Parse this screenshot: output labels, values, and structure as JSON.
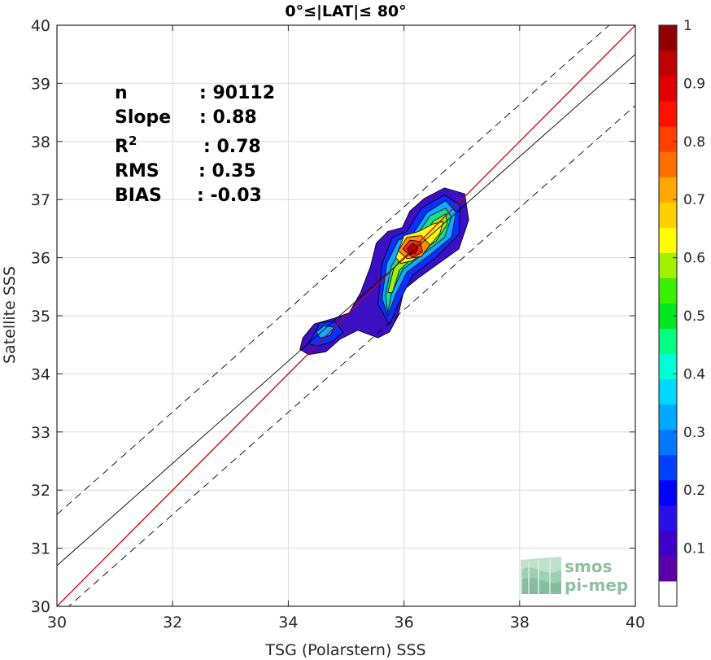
{
  "chart_data": {
    "type": "heatmap",
    "title": "0°≤|LAT|≤ 80°",
    "xlabel": "TSG (Polarstern) SSS",
    "ylabel": "Satellite SSS",
    "xlim": [
      30,
      40
    ],
    "ylim": [
      30,
      40
    ],
    "xticks": [
      "30",
      "32",
      "34",
      "36",
      "38",
      "40"
    ],
    "yticks": [
      "30",
      "31",
      "32",
      "33",
      "34",
      "35",
      "36",
      "37",
      "38",
      "39",
      "40"
    ],
    "grid": true,
    "stats": [
      {
        "label": "n",
        "value": ": 90112"
      },
      {
        "label": "Slope",
        "value": ": 0.88"
      },
      {
        "label": "R",
        "sup": "2",
        "value": ": 0.78"
      },
      {
        "label": "RMS",
        "value": ": 0.35"
      },
      {
        "label": "BIAS",
        "value": ": -0.03"
      }
    ],
    "lines": {
      "identity": {
        "color": "#cc0000",
        "from": [
          30,
          30
        ],
        "to": [
          40,
          40
        ]
      },
      "fit": {
        "color": "#000000",
        "from": [
          30,
          30.7
        ],
        "to": [
          40,
          39.5
        ]
      },
      "fit_upper": {
        "color": "#000000",
        "dashed": true,
        "from": [
          30,
          31.58
        ],
        "to": [
          40,
          40.4
        ]
      },
      "fit_lower": {
        "color": "#000000",
        "dashed": true,
        "from": [
          30,
          29.82
        ],
        "to": [
          40,
          38.62
        ]
      }
    },
    "density_levels": [
      {
        "level": 0.05,
        "color": "#3b0fc4",
        "poly": [
          [
            34.2,
            34.42
          ],
          [
            34.25,
            34.62
          ],
          [
            34.45,
            34.86
          ],
          [
            34.8,
            34.96
          ],
          [
            35.05,
            35.05
          ],
          [
            35.25,
            35.4
          ],
          [
            35.42,
            35.85
          ],
          [
            35.52,
            36.25
          ],
          [
            35.72,
            36.45
          ],
          [
            35.97,
            36.52
          ],
          [
            36.1,
            36.8
          ],
          [
            36.35,
            37.02
          ],
          [
            36.7,
            37.2
          ],
          [
            37.05,
            37.1
          ],
          [
            37.12,
            36.65
          ],
          [
            36.95,
            36.15
          ],
          [
            36.6,
            35.9
          ],
          [
            36.25,
            35.65
          ],
          [
            36.0,
            35.45
          ],
          [
            35.9,
            35.0
          ],
          [
            35.75,
            34.72
          ],
          [
            35.55,
            34.62
          ],
          [
            35.2,
            34.75
          ],
          [
            34.9,
            34.6
          ],
          [
            34.65,
            34.38
          ],
          [
            34.35,
            34.33
          ]
        ]
      },
      {
        "level": 0.15,
        "color": "#0b2fff",
        "poly": [
          [
            34.35,
            34.52
          ],
          [
            34.55,
            34.88
          ],
          [
            34.8,
            34.9
          ],
          [
            34.95,
            34.72
          ],
          [
            34.75,
            34.55
          ],
          [
            34.5,
            34.48
          ]
        ]
      },
      {
        "level": 0.15,
        "color": "#0b2fff",
        "poly": [
          [
            35.55,
            35.2
          ],
          [
            35.62,
            35.9
          ],
          [
            35.8,
            36.35
          ],
          [
            36.05,
            36.45
          ],
          [
            36.3,
            36.85
          ],
          [
            36.7,
            37.08
          ],
          [
            36.97,
            36.9
          ],
          [
            36.95,
            36.4
          ],
          [
            36.55,
            36.0
          ],
          [
            36.15,
            35.7
          ],
          [
            35.95,
            35.3
          ],
          [
            35.75,
            34.85
          ]
        ]
      },
      {
        "level": 0.3,
        "color": "#12a8ff",
        "poly": [
          [
            34.48,
            34.72
          ],
          [
            34.62,
            34.83
          ],
          [
            34.8,
            34.8
          ],
          [
            34.72,
            34.66
          ],
          [
            34.55,
            34.62
          ]
        ]
      },
      {
        "level": 0.3,
        "color": "#12a8ff",
        "poly": [
          [
            35.62,
            35.3
          ],
          [
            35.7,
            35.9
          ],
          [
            35.9,
            36.3
          ],
          [
            36.15,
            36.4
          ],
          [
            36.4,
            36.78
          ],
          [
            36.72,
            36.98
          ],
          [
            36.9,
            36.78
          ],
          [
            36.82,
            36.35
          ],
          [
            36.45,
            36.05
          ],
          [
            36.05,
            35.75
          ],
          [
            35.85,
            35.35
          ],
          [
            35.72,
            35.0
          ]
        ]
      },
      {
        "level": 0.45,
        "color": "#18e08a",
        "poly": [
          [
            35.68,
            35.35
          ],
          [
            35.78,
            35.85
          ],
          [
            35.98,
            36.2
          ],
          [
            36.2,
            36.35
          ],
          [
            36.45,
            36.72
          ],
          [
            36.72,
            36.85
          ],
          [
            36.82,
            36.7
          ],
          [
            36.7,
            36.35
          ],
          [
            36.35,
            36.08
          ],
          [
            35.98,
            35.8
          ],
          [
            35.78,
            35.38
          ],
          [
            35.72,
            35.05
          ]
        ]
      },
      {
        "level": 0.55,
        "color": "#9ef018",
        "poly": [
          [
            35.72,
            35.4
          ],
          [
            35.82,
            35.8
          ],
          [
            36.05,
            36.12
          ],
          [
            36.3,
            36.3
          ],
          [
            36.5,
            36.62
          ],
          [
            36.72,
            36.75
          ],
          [
            36.75,
            36.58
          ],
          [
            36.55,
            36.28
          ],
          [
            36.2,
            36.05
          ],
          [
            35.92,
            35.78
          ],
          [
            35.8,
            35.4
          ]
        ]
      },
      {
        "level": 0.65,
        "color": "#fff21a",
        "poly": [
          [
            35.86,
            36.0
          ],
          [
            36.0,
            36.38
          ],
          [
            36.25,
            36.45
          ],
          [
            36.5,
            36.58
          ],
          [
            36.68,
            36.62
          ],
          [
            36.62,
            36.42
          ],
          [
            36.4,
            36.15
          ],
          [
            36.15,
            35.95
          ],
          [
            35.95,
            35.9
          ]
        ]
      },
      {
        "level": 0.75,
        "color": "#ff8f0b",
        "poly": [
          [
            35.9,
            36.12
          ],
          [
            36.05,
            36.35
          ],
          [
            36.3,
            36.38
          ],
          [
            36.45,
            36.22
          ],
          [
            36.3,
            36.02
          ],
          [
            36.05,
            35.98
          ]
        ]
      },
      {
        "level": 0.85,
        "color": "#ff2a0a",
        "poly": [
          [
            35.98,
            36.15
          ],
          [
            36.1,
            36.3
          ],
          [
            36.28,
            36.28
          ],
          [
            36.32,
            36.1
          ],
          [
            36.15,
            36.0
          ]
        ]
      },
      {
        "level": 0.95,
        "color": "#b80000",
        "poly": [
          [
            36.05,
            36.15
          ],
          [
            36.15,
            36.25
          ],
          [
            36.24,
            36.18
          ],
          [
            36.2,
            36.07
          ],
          [
            36.1,
            36.06
          ]
        ]
      }
    ],
    "colorbar": {
      "min": 0.0,
      "max": 1.0,
      "ticks": [
        "0.1",
        "0.2",
        "0.3",
        "0.4",
        "0.5",
        "0.6",
        "0.7",
        "0.8",
        "0.9",
        "1"
      ],
      "bands": [
        "#ffffff",
        "#5b00a8",
        "#3e00c8",
        "#2a10e8",
        "#0000ff",
        "#0040ff",
        "#0078ff",
        "#00a8ff",
        "#00d8ff",
        "#00ffd8",
        "#00ff80",
        "#00e820",
        "#38f000",
        "#a0f000",
        "#ffff00",
        "#ffd000",
        "#ffa800",
        "#ff7000",
        "#ff4000",
        "#ff1000",
        "#e00000",
        "#c00000",
        "#900000"
      ]
    }
  },
  "watermark": {
    "line1": "smos",
    "line2": "pi-mep"
  }
}
